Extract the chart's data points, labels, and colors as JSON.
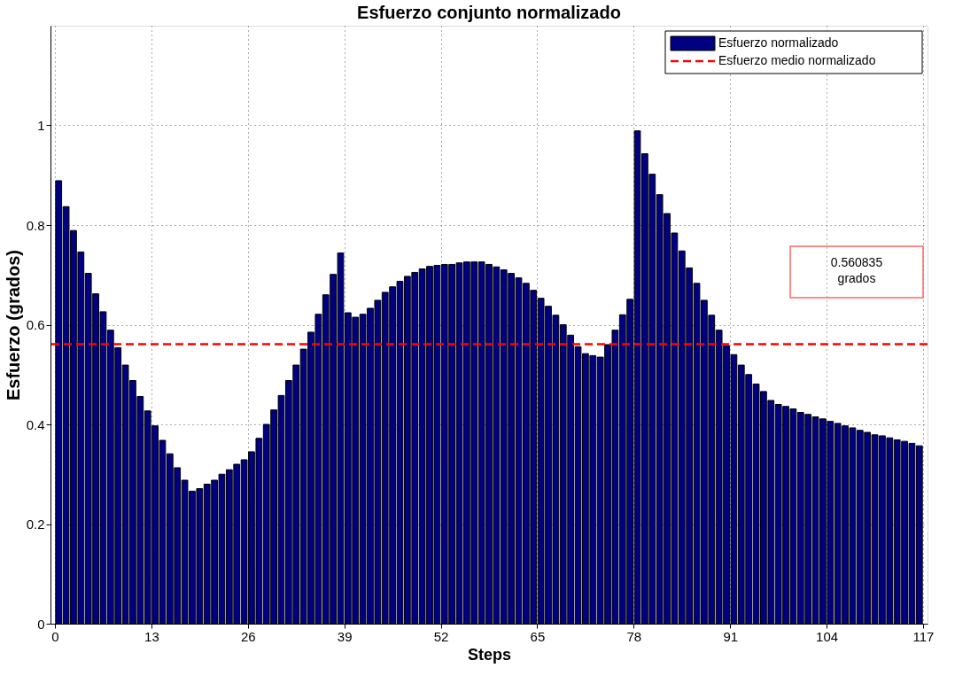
{
  "chart_data": {
    "type": "bar",
    "title": "Esfuerzo conjunto normalizado",
    "xlabel": "Steps",
    "ylabel": "Esfuerzo (grados)",
    "x": [
      0.5,
      1.5,
      2.5,
      3.5,
      4.5,
      5.5,
      6.5,
      7.5,
      8.5,
      9.5,
      10.5,
      11.5,
      12.5,
      13.5,
      14.5,
      15.5,
      16.5,
      17.5,
      18.5,
      19.5,
      20.5,
      21.5,
      22.5,
      23.5,
      24.5,
      25.5,
      26.5,
      27.5,
      28.5,
      29.5,
      30.5,
      31.5,
      32.5,
      33.5,
      34.5,
      35.5,
      36.5,
      37.5,
      38.5,
      39.5,
      40.5,
      41.5,
      42.5,
      43.5,
      44.5,
      45.5,
      46.5,
      47.5,
      48.5,
      49.5,
      50.5,
      51.5,
      52.5,
      53.5,
      54.5,
      55.5,
      56.5,
      57.5,
      58.5,
      59.5,
      60.5,
      61.5,
      62.5,
      63.5,
      64.5,
      65.5,
      66.5,
      67.5,
      68.5,
      69.5,
      70.5,
      71.5,
      72.5,
      73.5,
      74.5,
      75.5,
      76.5,
      77.5,
      78.5,
      79.5,
      80.5,
      81.5,
      82.5,
      83.5,
      84.5,
      85.5,
      86.5,
      87.5,
      88.5,
      89.5,
      90.5,
      91.5,
      92.5,
      93.5,
      94.5,
      95.5,
      96.5,
      97.5,
      98.5,
      99.5,
      100.5,
      101.5,
      102.5,
      103.5,
      104.5,
      105.5,
      106.5,
      107.5,
      108.5,
      109.5,
      110.5,
      111.5,
      112.5,
      113.5,
      114.5,
      115.5,
      116.5
    ],
    "series": [
      {
        "name": "Esfuerzo normalizado",
        "color": "#000080",
        "values": [
          0.889,
          0.837,
          0.789,
          0.746,
          0.703,
          0.662,
          0.626,
          0.589,
          0.554,
          0.519,
          0.488,
          0.456,
          0.427,
          0.397,
          0.368,
          0.341,
          0.313,
          0.288,
          0.266,
          0.271,
          0.28,
          0.288,
          0.3,
          0.309,
          0.32,
          0.329,
          0.345,
          0.372,
          0.4,
          0.429,
          0.458,
          0.488,
          0.519,
          0.551,
          0.585,
          0.621,
          0.66,
          0.701,
          0.744,
          0.624,
          0.615,
          0.621,
          0.633,
          0.649,
          0.665,
          0.676,
          0.687,
          0.697,
          0.705,
          0.712,
          0.717,
          0.719,
          0.721,
          0.721,
          0.724,
          0.726,
          0.726,
          0.726,
          0.721,
          0.716,
          0.71,
          0.703,
          0.694,
          0.683,
          0.669,
          0.653,
          0.637,
          0.619,
          0.6,
          0.579,
          0.556,
          0.542,
          0.538,
          0.535,
          0.56,
          0.589,
          0.62,
          0.651,
          0.989,
          0.943,
          0.902,
          0.861,
          0.823,
          0.784,
          0.748,
          0.714,
          0.683,
          0.649,
          0.619,
          0.589,
          0.558,
          0.54,
          0.519,
          0.5,
          0.481,
          0.466,
          0.448,
          0.44,
          0.436,
          0.431,
          0.424,
          0.42,
          0.415,
          0.411,
          0.406,
          0.402,
          0.397,
          0.393,
          0.388,
          0.384,
          0.379,
          0.377,
          0.373,
          0.369,
          0.366,
          0.362,
          0.357
        ]
      }
    ],
    "xlim": [
      0,
      117
    ],
    "xticks": [
      0,
      13,
      26,
      39,
      52,
      65,
      78,
      91,
      104,
      117
    ],
    "ylim": [
      0,
      1.2
    ],
    "yticks": [
      0,
      0.2,
      0.4,
      0.6,
      0.8,
      1
    ],
    "ref_lines": [
      {
        "axis": "y",
        "value": 0.560835,
        "label": "Esfuerzo medio normalizado",
        "color": "#ff0000",
        "line_style": "dashed"
      }
    ],
    "annotations": [
      "0.560835\ngrados"
    ],
    "grid": true,
    "legend": "top right"
  }
}
